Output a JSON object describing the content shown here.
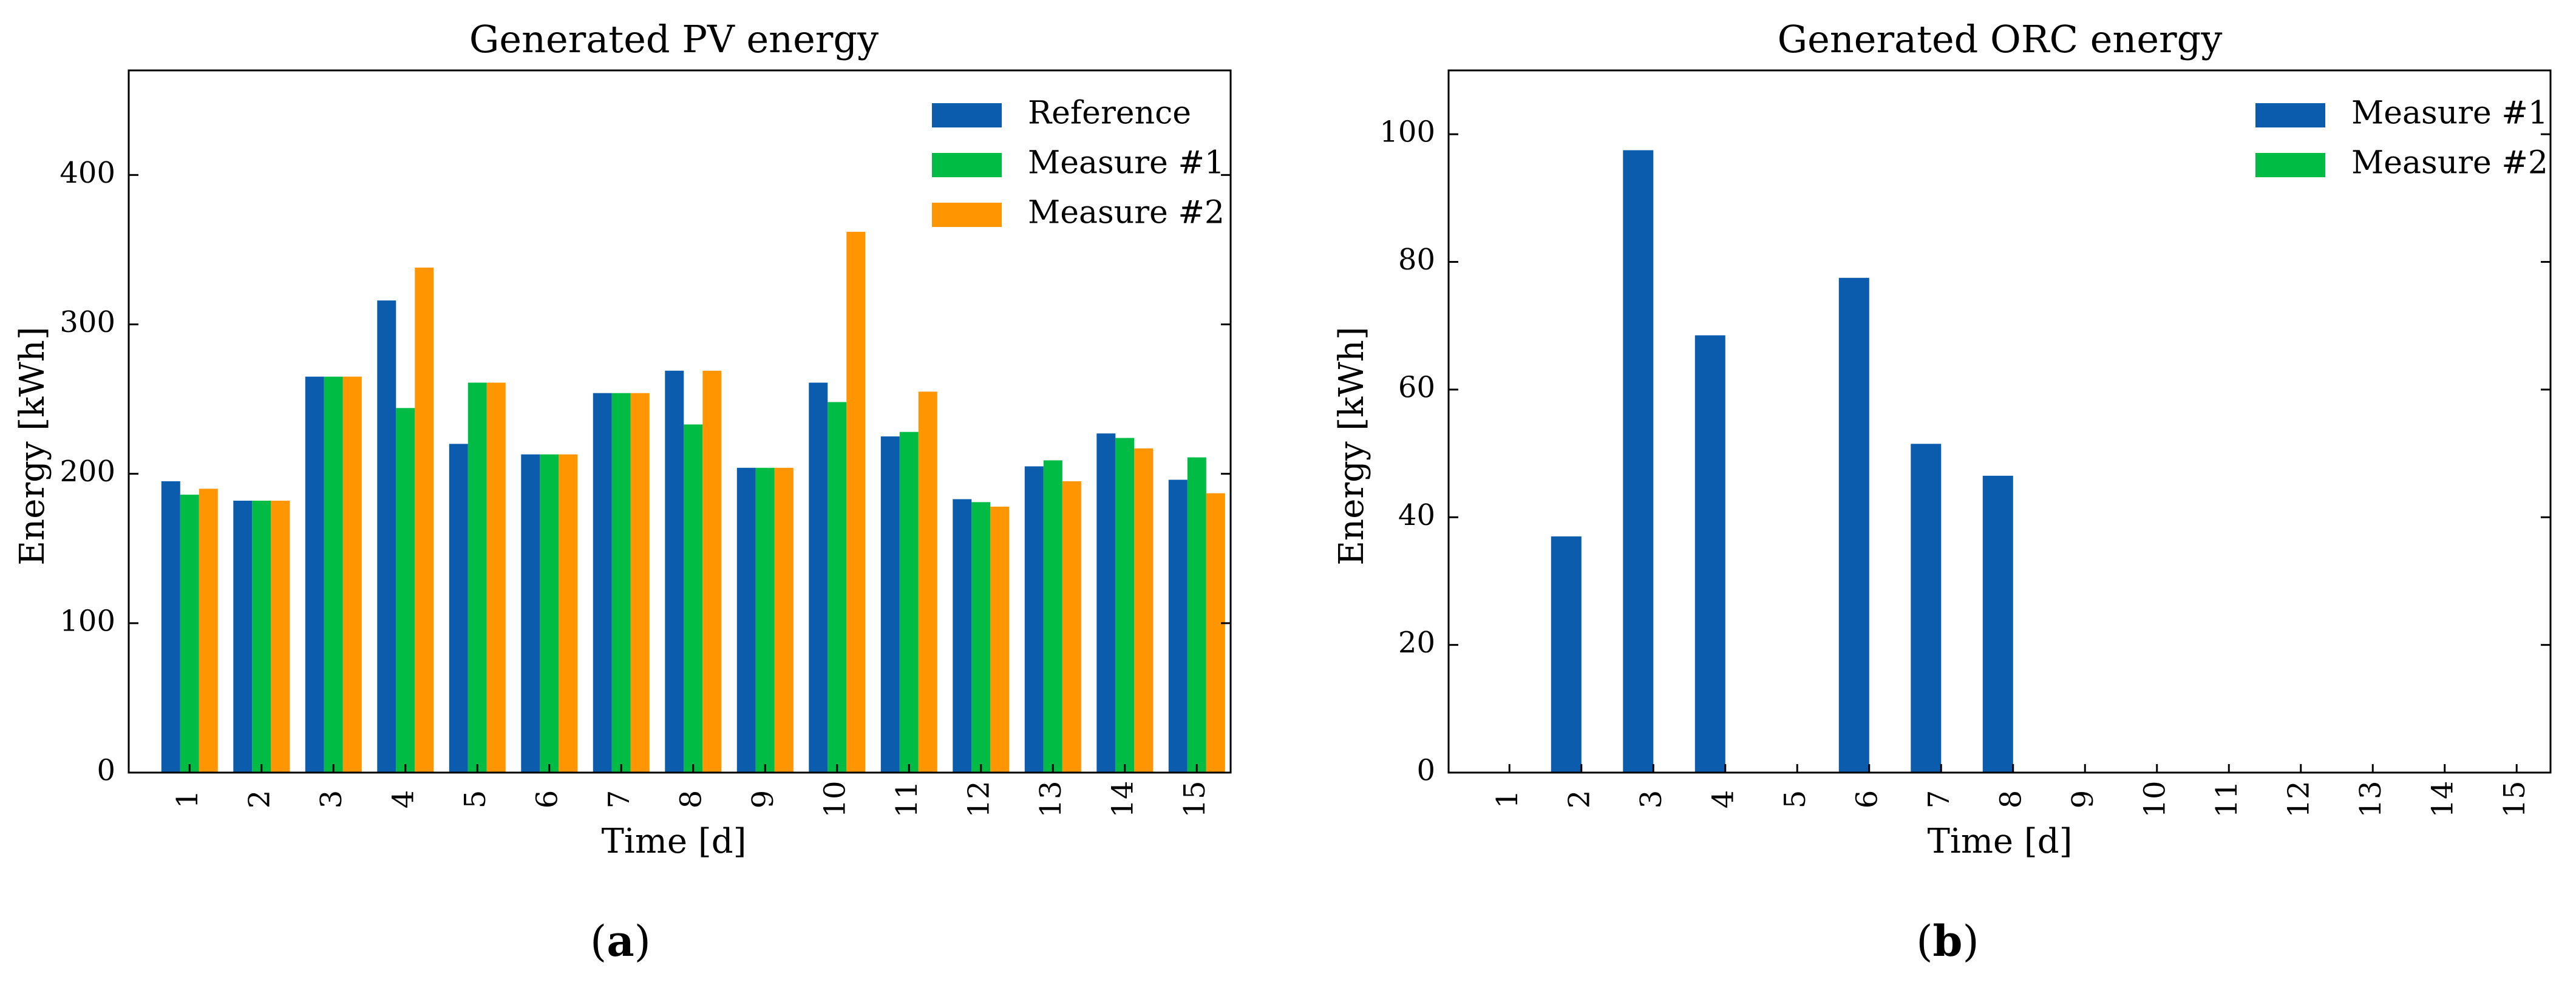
{
  "chart_data": [
    {
      "type": "bar",
      "title": "Generated PV energy",
      "xlabel": "Time [d]",
      "ylabel": "Energy [kWh]",
      "ylim": [
        0,
        470
      ],
      "yticks": [
        0,
        100,
        200,
        300,
        400
      ],
      "categories": [
        "1",
        "2",
        "3",
        "4",
        "5",
        "6",
        "7",
        "8",
        "9",
        "10",
        "11",
        "12",
        "13",
        "14",
        "15"
      ],
      "series": [
        {
          "name": "Reference",
          "color": "#0b5cad",
          "values": [
            195,
            182,
            265,
            316,
            220,
            213,
            254,
            269,
            204,
            261,
            225,
            183,
            205,
            227,
            196
          ]
        },
        {
          "name": "Measure #1",
          "color": "#00bb44",
          "values": [
            186,
            182,
            265,
            244,
            261,
            213,
            254,
            233,
            204,
            248,
            228,
            181,
            209,
            224,
            211
          ]
        },
        {
          "name": "Measure #2",
          "color": "#ff9500",
          "values": [
            190,
            182,
            265,
            338,
            261,
            213,
            254,
            269,
            204,
            362,
            255,
            178,
            195,
            217,
            187
          ]
        }
      ],
      "legend_position": "top-right",
      "panel_label": "a"
    },
    {
      "type": "bar",
      "title": "Generated ORC energy",
      "xlabel": "Time [d]",
      "ylabel": "Energy [kWh]",
      "ylim": [
        0,
        110
      ],
      "yticks": [
        0,
        20,
        40,
        60,
        80,
        100
      ],
      "categories": [
        "1",
        "2",
        "3",
        "4",
        "5",
        "6",
        "7",
        "8",
        "9",
        "10",
        "11",
        "12",
        "13",
        "14",
        "15"
      ],
      "series": [
        {
          "name": "Measure #1",
          "color": "#0b5cad",
          "values": [
            0,
            37,
            97.5,
            68.5,
            0,
            77.5,
            51.5,
            46.5,
            0,
            0,
            0,
            0,
            0,
            0,
            0
          ]
        },
        {
          "name": "Measure #2",
          "color": "#00bb44",
          "values": [
            0,
            0,
            0,
            0,
            0,
            0,
            0,
            0,
            0,
            0,
            0,
            0,
            0,
            0,
            0
          ]
        }
      ],
      "legend_position": "top-right",
      "panel_label": "b"
    }
  ]
}
